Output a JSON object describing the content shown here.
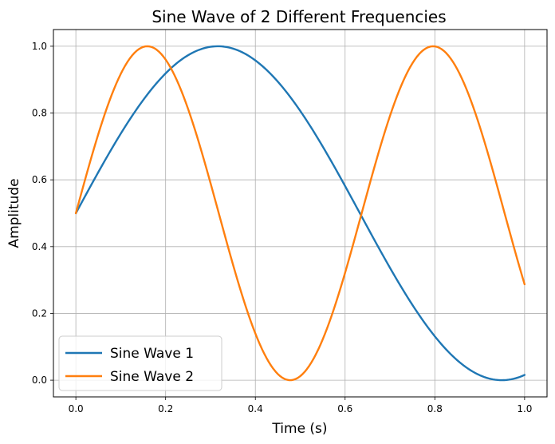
{
  "chart_data": {
    "type": "line",
    "title": "Sine Wave of 2 Different Frequencies",
    "xlabel": "Time (s)",
    "ylabel": "Amplitude",
    "xlim": [
      -0.05,
      1.05
    ],
    "ylim": [
      -0.05,
      1.05
    ],
    "xticks": [
      0.0,
      0.2,
      0.4,
      0.6,
      0.8,
      1.0
    ],
    "xtick_labels": [
      "0.0",
      "0.2",
      "0.4",
      "0.6",
      "0.8",
      "1.0"
    ],
    "yticks": [
      0.0,
      0.2,
      0.4,
      0.6,
      0.8,
      1.0
    ],
    "ytick_labels": [
      "0.0",
      "0.2",
      "0.4",
      "0.6",
      "0.8",
      "1.0"
    ],
    "grid": true,
    "legend_position": "lower-left",
    "series": [
      {
        "name": "Sine Wave 1",
        "color": "#1f77b4",
        "formula": "0.5 + 0.5*sin(2*pi*0.79*t)",
        "frequency_hz": 0.79
      },
      {
        "name": "Sine Wave 2",
        "color": "#ff7f0e",
        "formula": "0.5 + 0.5*sin(2*pi*1.57*t)",
        "frequency_hz": 1.57
      }
    ],
    "x_start": 0.0,
    "x_end": 1.0,
    "samples": 200
  }
}
